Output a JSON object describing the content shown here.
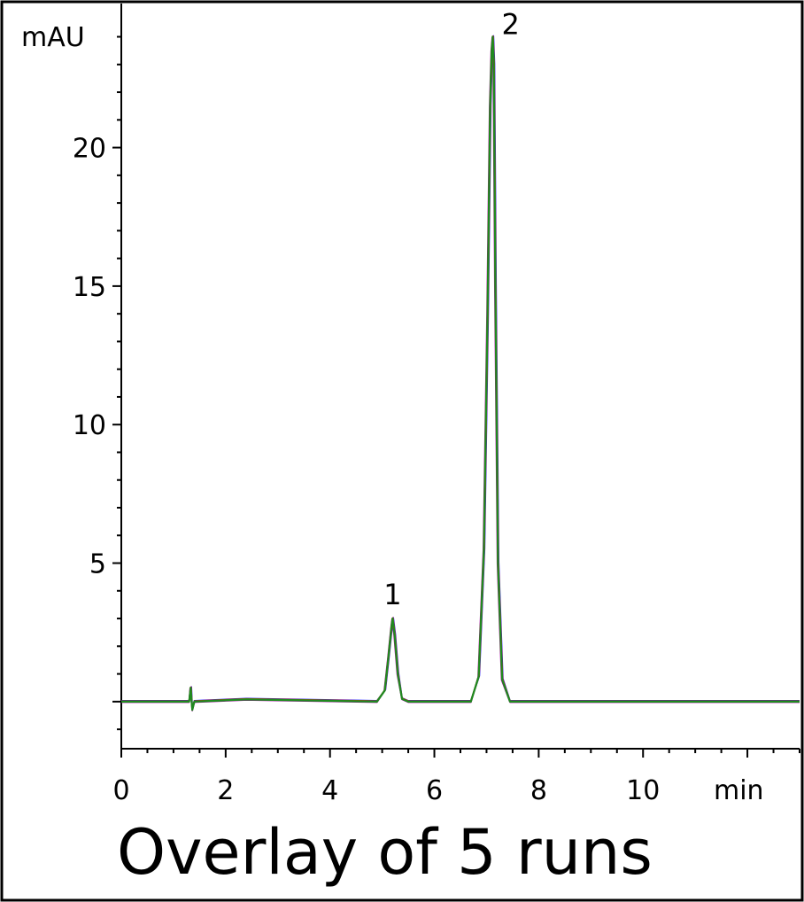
{
  "chart_data": {
    "type": "line",
    "title": "Overlay of 5 runs",
    "ylabel": "mAU",
    "xlabel": "min",
    "xlim": [
      0,
      13
    ],
    "ylim": [
      -1.7,
      25.2
    ],
    "x_ticks": [
      0,
      2,
      4,
      6,
      8,
      10
    ],
    "y_ticks": [
      5,
      10,
      15,
      20
    ],
    "y_zero_tick": 0,
    "grid": false,
    "legend": "none",
    "peak_labels": [
      {
        "label": "1",
        "x": 5.2,
        "y": 3.0
      },
      {
        "label": "2",
        "x": 7.12,
        "y": 24.0
      }
    ],
    "series_colors": [
      "#1a1aff",
      "#aa00aa",
      "#ff2200",
      "#666600",
      "#1f8a1f"
    ],
    "series": [
      {
        "values_x": [
          0,
          1.3,
          1.33,
          1.36,
          1.4,
          2.4,
          4.9,
          5.05,
          5.12,
          5.18,
          5.2,
          5.24,
          5.3,
          5.38,
          5.5,
          6.7,
          6.85,
          6.95,
          7.02,
          7.07,
          7.1,
          7.12,
          7.14,
          7.17,
          7.22,
          7.3,
          7.45,
          13
        ],
        "values_y": [
          0,
          0,
          0.5,
          -0.3,
          0,
          0.08,
          0,
          0.4,
          1.6,
          2.7,
          3.0,
          2.4,
          1.0,
          0.1,
          0,
          0,
          0.9,
          5.5,
          14.0,
          21.5,
          23.5,
          24.0,
          23.0,
          15.0,
          5.0,
          0.8,
          0,
          0
        ]
      }
    ]
  }
}
